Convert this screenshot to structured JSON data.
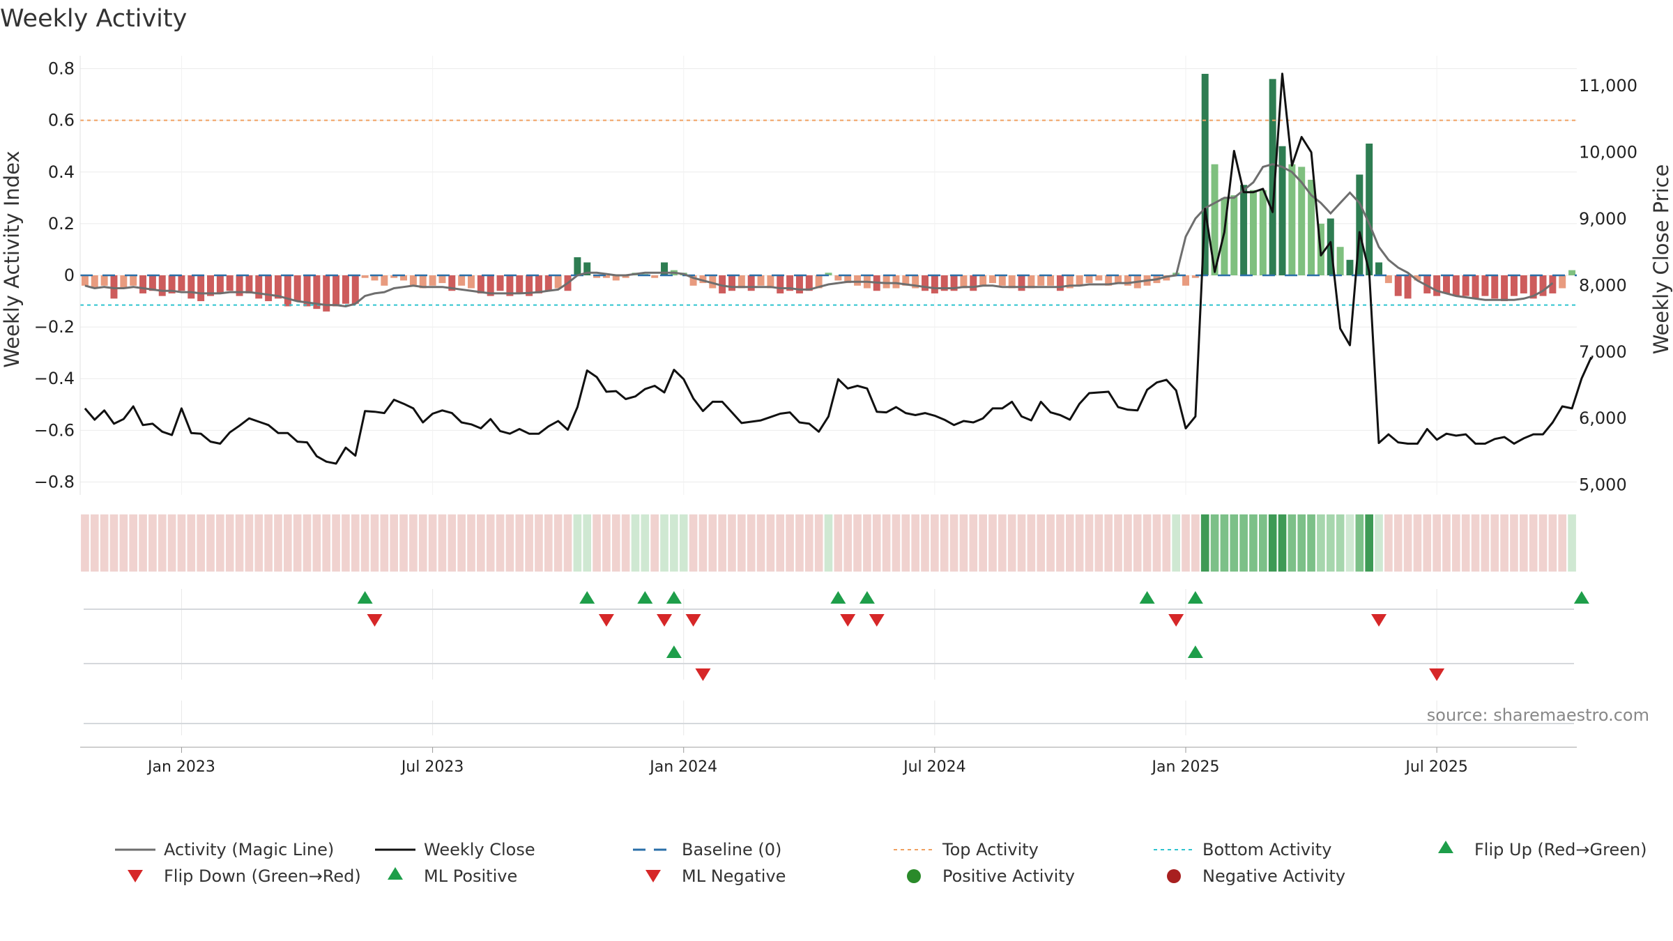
{
  "chart_data": {
    "type": "bar",
    "title": "Weekly Activity",
    "ylabel": "Weekly Activity Index",
    "y2label": "Weekly Close Price",
    "ylim": [
      -0.85,
      0.85
    ],
    "y2lim": [
      4850,
      11450
    ],
    "yticks": [
      "0.8",
      "0.6",
      "0.4",
      "0.2",
      "0",
      "−0.2",
      "−0.4",
      "−0.6",
      "−0.8"
    ],
    "ytick_values": [
      0.8,
      0.6,
      0.4,
      0.2,
      0,
      -0.2,
      -0.4,
      -0.6,
      -0.8
    ],
    "y2ticks": [
      "11,000",
      "10,000",
      "9,000",
      "8,000",
      "7,000",
      "6,000",
      "5,000"
    ],
    "y2tick_values": [
      11000,
      10000,
      9000,
      8000,
      7000,
      6000,
      5000
    ],
    "xticks": [
      "Jan 2023",
      "Jul 2023",
      "Jan 2024",
      "Jul 2024",
      "Jan 2025",
      "Jul 2025"
    ],
    "xtick_weeks": [
      10,
      36,
      62,
      88,
      114,
      140
    ],
    "reference_lines": {
      "baseline": 0,
      "top_activity": 0.6,
      "bottom_activity": -0.115
    },
    "activity_bars": [
      -0.04,
      -0.05,
      -0.04,
      -0.09,
      -0.05,
      -0.04,
      -0.07,
      -0.06,
      -0.08,
      -0.07,
      -0.06,
      -0.09,
      -0.1,
      -0.08,
      -0.07,
      -0.06,
      -0.08,
      -0.07,
      -0.09,
      -0.1,
      -0.09,
      -0.12,
      -0.1,
      -0.12,
      -0.13,
      -0.14,
      -0.12,
      -0.11,
      -0.11,
      -0.01,
      -0.02,
      -0.04,
      -0.01,
      -0.02,
      -0.04,
      -0.05,
      -0.04,
      -0.03,
      -0.06,
      -0.04,
      -0.05,
      -0.07,
      -0.08,
      -0.06,
      -0.08,
      -0.07,
      -0.08,
      -0.07,
      -0.06,
      -0.05,
      -0.06,
      0.07,
      0.05,
      -0.01,
      -0.01,
      -0.02,
      -0.01,
      0.01,
      0.005,
      -0.01,
      0.05,
      0.02,
      0.01,
      -0.04,
      -0.03,
      -0.05,
      -0.07,
      -0.06,
      -0.05,
      -0.06,
      -0.04,
      -0.05,
      -0.07,
      -0.06,
      -0.07,
      -0.06,
      -0.05,
      0.01,
      -0.02,
      -0.03,
      -0.04,
      -0.05,
      -0.06,
      -0.05,
      -0.05,
      -0.04,
      -0.05,
      -0.06,
      -0.07,
      -0.06,
      -0.06,
      -0.05,
      -0.06,
      -0.04,
      -0.03,
      -0.04,
      -0.05,
      -0.06,
      -0.05,
      -0.04,
      -0.04,
      -0.06,
      -0.05,
      -0.04,
      -0.03,
      -0.02,
      -0.04,
      -0.03,
      -0.04,
      -0.05,
      -0.04,
      -0.03,
      -0.02,
      0.01,
      -0.04,
      -0.01,
      0.78,
      0.43,
      0.3,
      0.31,
      0.35,
      0.33,
      0.33,
      0.76,
      0.5,
      0.43,
      0.42,
      0.37,
      0.2,
      0.22,
      0.11,
      0.06,
      0.39,
      0.51,
      0.05,
      -0.03,
      -0.08,
      -0.09,
      -0.02,
      -0.07,
      -0.08,
      -0.07,
      -0.08,
      -0.08,
      -0.09,
      -0.08,
      -0.09,
      -0.1,
      -0.08,
      -0.07,
      -0.09,
      -0.08,
      -0.07,
      -0.05,
      0.02
    ],
    "magic_line": [
      -0.04,
      -0.05,
      -0.045,
      -0.05,
      -0.05,
      -0.045,
      -0.05,
      -0.055,
      -0.06,
      -0.06,
      -0.065,
      -0.065,
      -0.07,
      -0.07,
      -0.07,
      -0.065,
      -0.065,
      -0.065,
      -0.07,
      -0.075,
      -0.08,
      -0.09,
      -0.1,
      -0.105,
      -0.11,
      -0.115,
      -0.115,
      -0.12,
      -0.11,
      -0.08,
      -0.07,
      -0.065,
      -0.05,
      -0.045,
      -0.04,
      -0.045,
      -0.045,
      -0.045,
      -0.05,
      -0.055,
      -0.06,
      -0.065,
      -0.07,
      -0.07,
      -0.07,
      -0.07,
      -0.068,
      -0.065,
      -0.06,
      -0.055,
      -0.03,
      0,
      0.01,
      0.01,
      0.005,
      0,
      0,
      0.005,
      0.01,
      0.01,
      0.01,
      0.01,
      0.005,
      -0.01,
      -0.02,
      -0.03,
      -0.04,
      -0.045,
      -0.045,
      -0.045,
      -0.045,
      -0.045,
      -0.05,
      -0.05,
      -0.055,
      -0.055,
      -0.045,
      -0.035,
      -0.03,
      -0.025,
      -0.025,
      -0.025,
      -0.028,
      -0.03,
      -0.03,
      -0.035,
      -0.04,
      -0.045,
      -0.05,
      -0.05,
      -0.05,
      -0.045,
      -0.045,
      -0.04,
      -0.04,
      -0.045,
      -0.045,
      -0.045,
      -0.045,
      -0.045,
      -0.045,
      -0.045,
      -0.04,
      -0.04,
      -0.035,
      -0.035,
      -0.035,
      -0.03,
      -0.03,
      -0.025,
      -0.02,
      -0.015,
      -0.005,
      0,
      0.15,
      0.22,
      0.26,
      0.28,
      0.3,
      0.3,
      0.33,
      0.36,
      0.42,
      0.43,
      0.42,
      0.4,
      0.36,
      0.31,
      0.28,
      0.24,
      0.28,
      0.32,
      0.28,
      0.2,
      0.11,
      0.06,
      0.03,
      0.01,
      -0.02,
      -0.04,
      -0.06,
      -0.07,
      -0.08,
      -0.085,
      -0.09,
      -0.095,
      -0.095,
      -0.095,
      -0.095,
      -0.09,
      -0.08,
      -0.06,
      -0.03
    ],
    "weekly_close": [
      6150,
      5980,
      6120,
      5920,
      5990,
      6180,
      5900,
      5920,
      5800,
      5750,
      6150,
      5780,
      5770,
      5650,
      5620,
      5790,
      5890,
      6000,
      5950,
      5900,
      5780,
      5780,
      5650,
      5640,
      5430,
      5350,
      5320,
      5560,
      5440,
      6110,
      6100,
      6080,
      6280,
      6220,
      6150,
      5940,
      6070,
      6120,
      6080,
      5940,
      5910,
      5850,
      5990,
      5810,
      5770,
      5840,
      5770,
      5770,
      5880,
      5960,
      5830,
      6170,
      6720,
      6620,
      6400,
      6410,
      6290,
      6330,
      6440,
      6490,
      6390,
      6730,
      6590,
      6300,
      6110,
      6250,
      6250,
      6090,
      5930,
      5950,
      5970,
      6020,
      6070,
      6090,
      5940,
      5920,
      5800,
      6030,
      6590,
      6450,
      6490,
      6450,
      6100,
      6090,
      6170,
      6080,
      6050,
      6080,
      6040,
      5980,
      5900,
      5960,
      5940,
      6000,
      6150,
      6150,
      6250,
      6030,
      5970,
      6250,
      6090,
      6050,
      5980,
      6220,
      6380,
      6390,
      6400,
      6170,
      6130,
      6120,
      6430,
      6540,
      6580,
      6420,
      5850,
      6030,
      9150,
      8200,
      8800,
      10020,
      9400,
      9400,
      9450,
      9100,
      11180,
      9800,
      10230,
      10000,
      8450,
      8650,
      7350,
      7100,
      8800,
      8200,
      5630,
      5760,
      5640,
      5620,
      5620,
      5840,
      5680,
      5770,
      5740,
      5760,
      5620,
      5620,
      5690,
      5720,
      5620,
      5700,
      5760,
      5760,
      5940,
      6180,
      6150,
      6600,
      6920
    ],
    "flips": {
      "up_weeks": [
        29,
        52,
        58,
        61,
        78,
        81,
        110,
        115,
        155
      ],
      "down_weeks": [
        30,
        54,
        60,
        63,
        79,
        82,
        113,
        134
      ],
      "ml_positive_weeks": [
        61,
        115
      ],
      "ml_negative_weeks": [
        64,
        140
      ]
    },
    "legend": [
      {
        "key": "activity-magic-line",
        "label": "Activity (Magic Line)"
      },
      {
        "key": "weekly-close",
        "label": "Weekly Close"
      },
      {
        "key": "baseline",
        "label": "Baseline (0)"
      },
      {
        "key": "top-activity",
        "label": "Top Activity"
      },
      {
        "key": "bottom-activity",
        "label": "Bottom Activity"
      },
      {
        "key": "flip-up",
        "label": "Flip Up (Red→Green)"
      },
      {
        "key": "flip-down",
        "label": "Flip Down (Green→Red)"
      },
      {
        "key": "ml-positive",
        "label": "ML Positive"
      },
      {
        "key": "ml-negative",
        "label": "ML Negative"
      },
      {
        "key": "positive-activity",
        "label": "Positive Activity"
      },
      {
        "key": "negative-activity",
        "label": "Negative Activity"
      }
    ],
    "source": "source: sharemaestro.com"
  },
  "colors": {
    "strong_green": "#2e7d52",
    "light_green": "#7fc07f",
    "strong_red": "#cd5c5c",
    "light_red": "#e89b7f",
    "magic_line": "#6e6e6e",
    "close_line": "#111111",
    "baseline": "#2a6fa8",
    "top_activity": "#f0a060",
    "bottom_activity": "#2ec4cf",
    "flip_up": "#1e9e4a",
    "flip_down": "#d62728",
    "positive_dot": "#2a8a2a",
    "negative_dot": "#a82020"
  }
}
